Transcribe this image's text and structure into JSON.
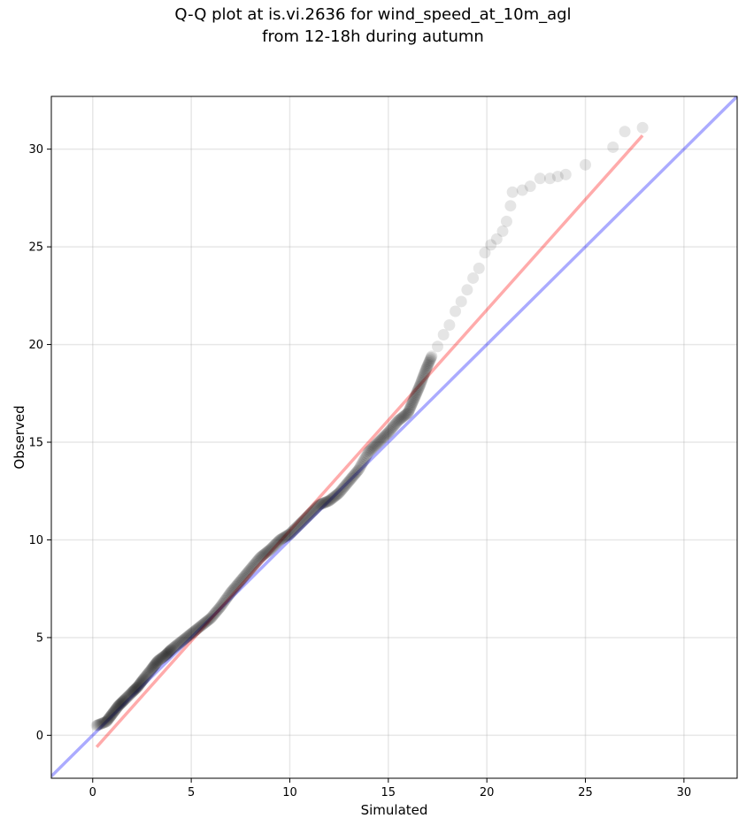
{
  "chart_data": {
    "type": "scatter",
    "title": "Q-Q plot at is.vi.2636 for wind_speed_at_10m_agl",
    "subtitle": "from 12-18h during autumn",
    "xlabel": "Simulated",
    "ylabel": "Observed",
    "xlim": [
      -2.1,
      32.7
    ],
    "ylim": [
      -2.2,
      32.7
    ],
    "xticks": [
      0,
      5,
      10,
      15,
      20,
      25,
      30
    ],
    "yticks": [
      0,
      5,
      10,
      15,
      20,
      25,
      30
    ],
    "xtick_labels": [
      "0",
      "5",
      "10",
      "15",
      "20",
      "25",
      "30"
    ],
    "ytick_labels": [
      "0",
      "5",
      "10",
      "15",
      "20",
      "25",
      "30"
    ],
    "grid": true,
    "points": {
      "color": "#000000",
      "x": [
        0.2,
        0.7,
        1.0,
        1.3,
        1.6,
        2.0,
        2.3,
        2.6,
        3.0,
        3.3,
        3.7,
        4.0,
        4.5,
        5.0,
        5.5,
        6.0,
        6.5,
        7.0,
        7.5,
        8.0,
        8.5,
        9.0,
        9.5,
        10.0,
        10.5,
        11.0,
        11.5,
        12.0,
        12.5,
        13.0,
        13.5,
        14.0,
        14.5,
        15.0,
        15.5,
        16.0,
        16.3,
        16.6,
        16.9,
        17.2,
        17.5,
        17.8,
        18.1,
        18.4,
        18.7,
        19.0,
        19.3,
        19.6,
        19.9,
        20.2,
        20.5,
        20.8,
        21.0,
        21.2,
        21.3,
        21.8,
        22.2,
        22.7,
        23.2,
        23.6,
        24.0,
        25.0,
        26.4,
        27.0,
        27.9
      ],
      "y": [
        0.5,
        0.7,
        1.1,
        1.5,
        1.8,
        2.2,
        2.5,
        2.9,
        3.4,
        3.8,
        4.1,
        4.4,
        4.8,
        5.2,
        5.6,
        6.0,
        6.6,
        7.3,
        7.9,
        8.5,
        9.1,
        9.5,
        10.0,
        10.3,
        10.8,
        11.3,
        11.8,
        12.0,
        12.4,
        13.0,
        13.6,
        14.5,
        15.0,
        15.5,
        16.1,
        16.5,
        17.2,
        17.9,
        18.7,
        19.4,
        19.9,
        20.5,
        21.0,
        21.7,
        22.2,
        22.8,
        23.4,
        23.9,
        24.7,
        25.1,
        25.4,
        25.8,
        26.3,
        27.1,
        27.8,
        27.9,
        28.1,
        28.5,
        28.5,
        28.6,
        28.7,
        29.2,
        30.1,
        30.9,
        31.1
      ]
    },
    "identity_line": {
      "color": "#0000ff",
      "x": [
        -2.1,
        32.7
      ],
      "y": [
        -2.1,
        32.7
      ]
    },
    "fit_line": {
      "color": "#ff0000",
      "x": [
        0.2,
        27.9
      ],
      "y": [
        -0.6,
        30.7
      ]
    }
  }
}
